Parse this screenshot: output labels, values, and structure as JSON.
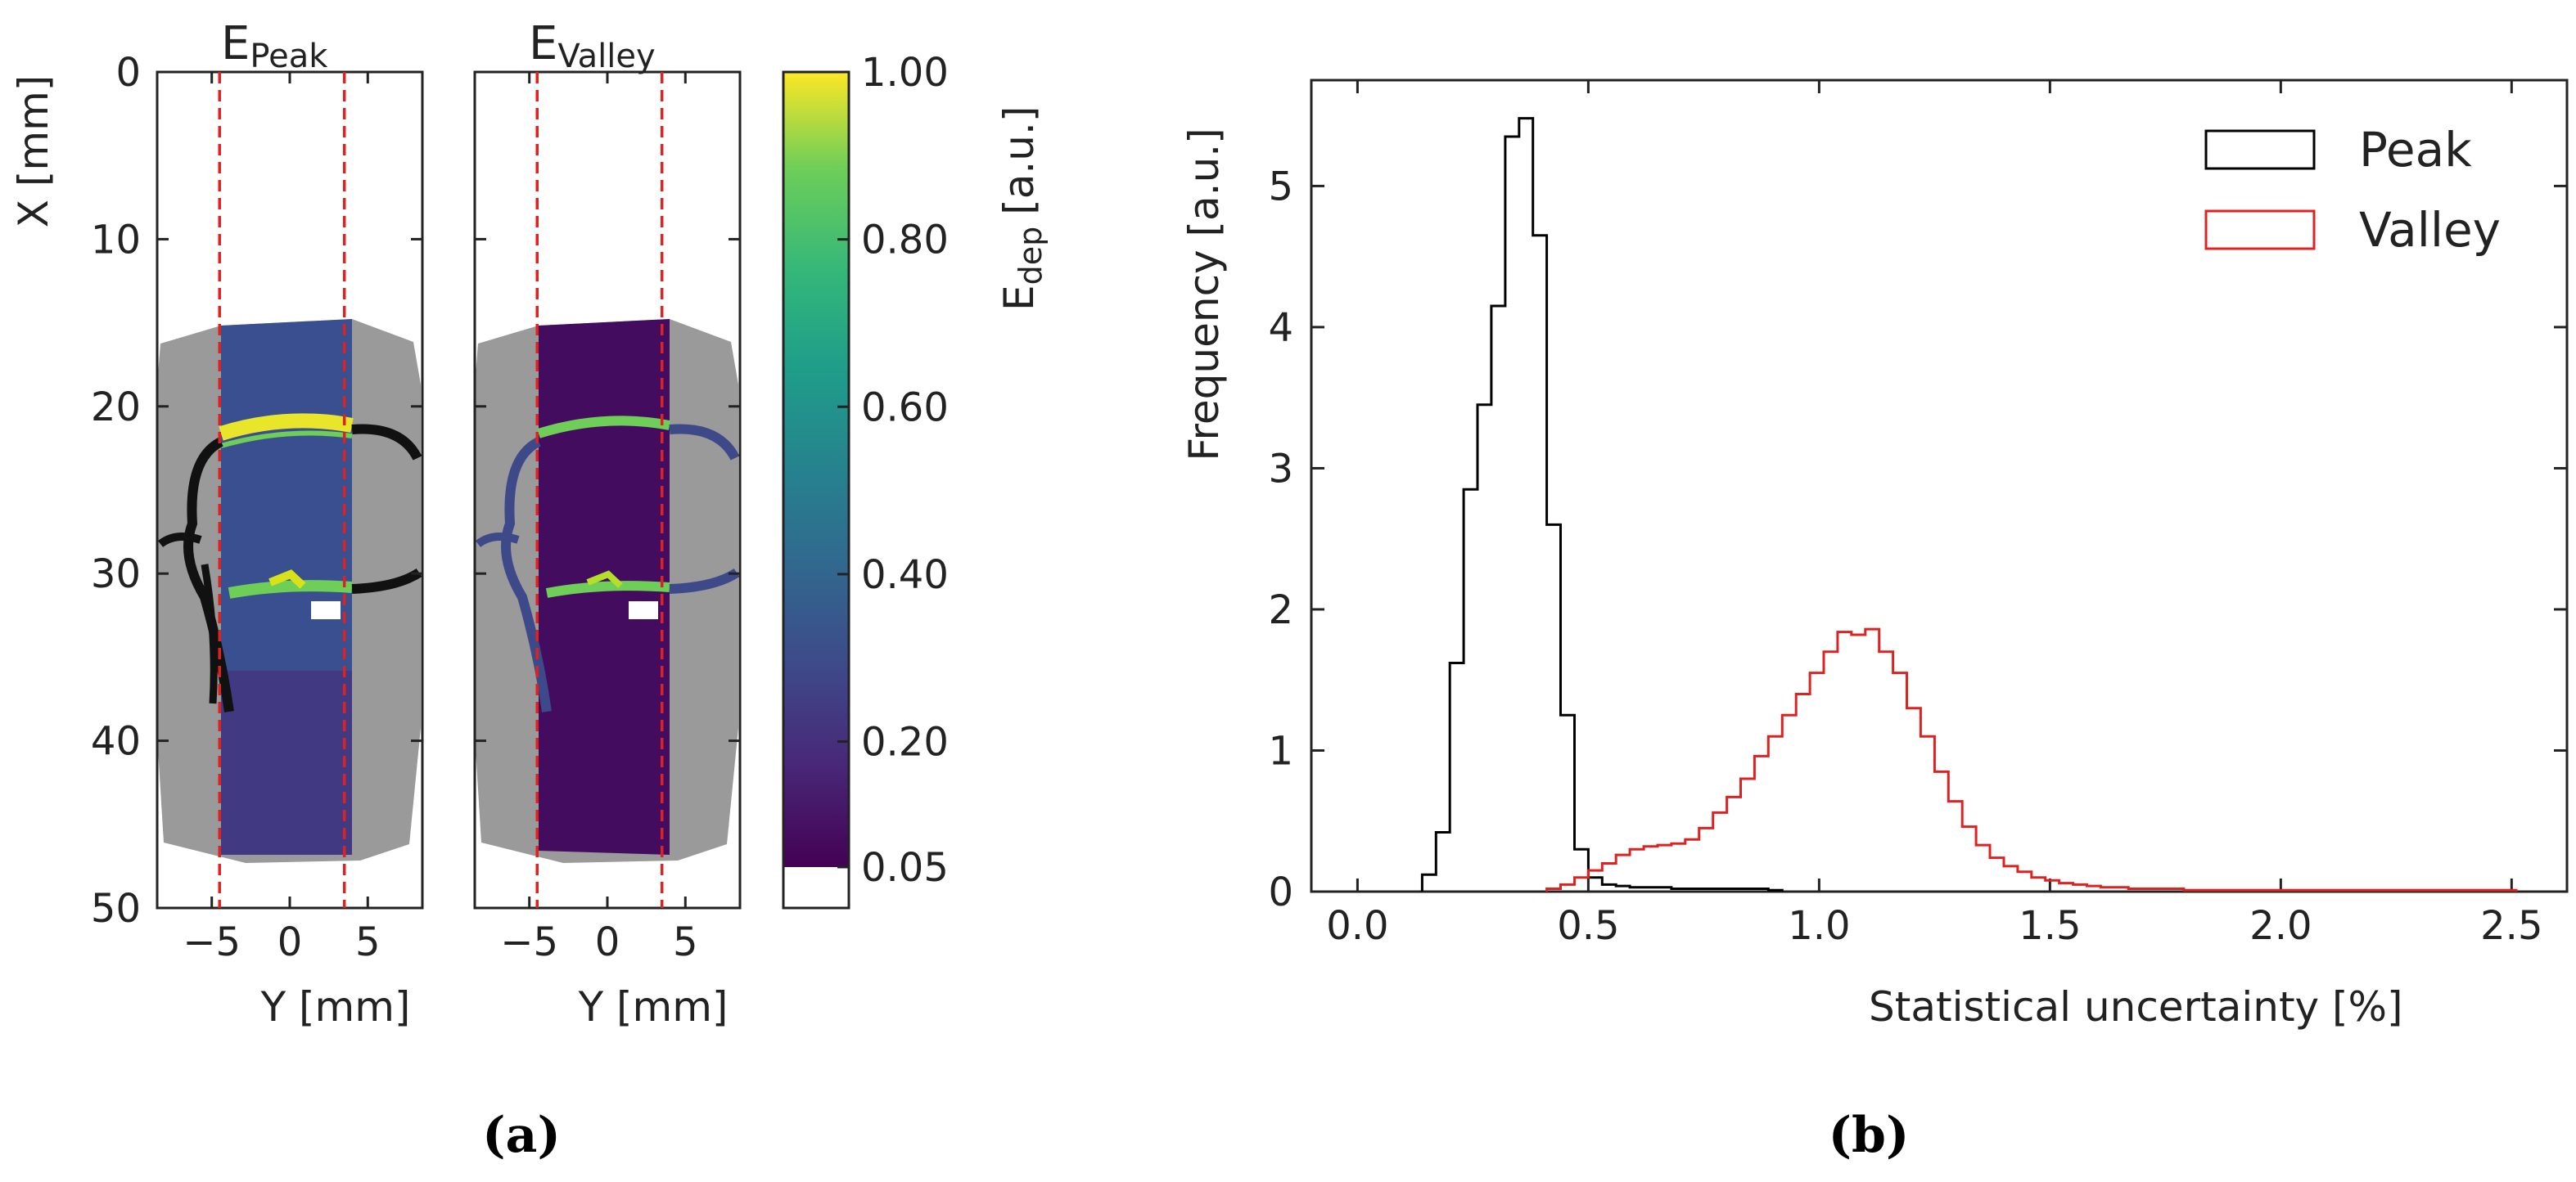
{
  "chart_data": [
    {
      "type": "heatmap",
      "panel_label": "(a)",
      "maps": [
        {
          "title_main": "E",
          "title_sub": "Peak"
        },
        {
          "title_main": "E",
          "title_sub": "Valley"
        }
      ],
      "xlabel": "Y [mm]",
      "ylabel": "X [mm]",
      "xticks": [
        -5,
        0,
        5
      ],
      "xlim": [
        -8.5,
        8.5
      ],
      "yticks": [
        0,
        10,
        20,
        30,
        40,
        50
      ],
      "ylim": [
        0,
        50
      ],
      "beam_edges_mm": [
        -4.5,
        3.5
      ],
      "colorbar": {
        "label_main": "E",
        "label_sub": "dep",
        "label_unit": "[a.u.]",
        "ticks": [
          1.0,
          0.8,
          0.6,
          0.4,
          0.2,
          0.05
        ],
        "tick_labels": [
          "1.00",
          "0.80",
          "0.60",
          "0.40",
          "0.20",
          "0.05"
        ],
        "range": [
          0.05,
          1.0
        ],
        "colormap": "viridis"
      },
      "colors": {
        "tissue": "#9a9a9a",
        "bone": "#111111",
        "beam_line": "#dd2222"
      }
    },
    {
      "type": "line",
      "style": "step-histogram",
      "panel_label": "(b)",
      "xlabel": "Statistical uncertainty [%]",
      "ylabel": "Frequency [a.u.]",
      "xlim": [
        -0.1,
        2.62
      ],
      "ylim": [
        0,
        5.75
      ],
      "xticks": [
        0.0,
        0.5,
        1.0,
        1.5,
        2.0,
        2.5
      ],
      "xtick_labels": [
        "0.0",
        "0.5",
        "1.0",
        "1.5",
        "2.0",
        "2.5"
      ],
      "yticks": [
        0,
        1,
        2,
        3,
        4,
        5
      ],
      "ytick_labels": [
        "0",
        "1",
        "2",
        "3",
        "4",
        "5"
      ],
      "bin_width": 0.03,
      "legend_position": "top-right",
      "series": [
        {
          "name": "Peak",
          "color": "#000000",
          "bin_start": 0.14,
          "values": [
            0.12,
            0.42,
            1.62,
            2.85,
            3.45,
            4.15,
            5.35,
            5.48,
            4.65,
            2.6,
            1.25,
            0.3,
            0.1,
            0.05,
            0.04,
            0.03,
            0.03,
            0.03,
            0.02,
            0.02,
            0.02,
            0.02,
            0.02,
            0.02,
            0.02,
            0.01
          ]
        },
        {
          "name": "Valley",
          "color": "#dd2222",
          "bin_start": 0.41,
          "values": [
            0.02,
            0.05,
            0.1,
            0.15,
            0.2,
            0.26,
            0.3,
            0.32,
            0.33,
            0.34,
            0.37,
            0.45,
            0.56,
            0.67,
            0.8,
            0.96,
            1.1,
            1.25,
            1.4,
            1.55,
            1.7,
            1.84,
            1.82,
            1.86,
            1.7,
            1.55,
            1.3,
            1.1,
            0.85,
            0.64,
            0.46,
            0.33,
            0.24,
            0.18,
            0.14,
            0.1,
            0.08,
            0.06,
            0.05,
            0.04,
            0.03,
            0.03,
            0.02,
            0.02,
            0.02,
            0.02,
            0.01,
            0.01,
            0.01,
            0.01,
            0.01,
            0.01,
            0.01,
            0.01,
            0.01,
            0.01,
            0.01,
            0.01,
            0.01,
            0.01,
            0.01,
            0.01,
            0.01,
            0.01,
            0.01,
            0.01,
            0.01,
            0.01,
            0.01,
            0.01
          ]
        }
      ]
    }
  ]
}
